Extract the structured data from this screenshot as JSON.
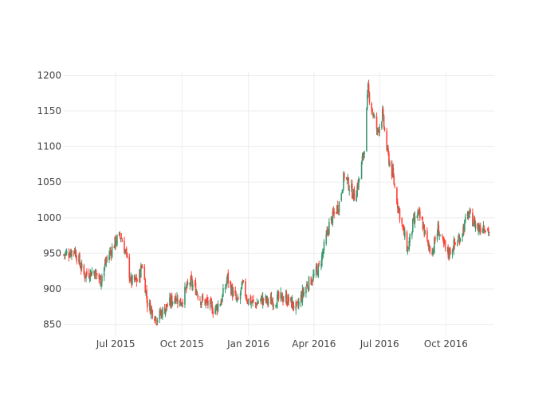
{
  "chart_data": {
    "type": "candlestick",
    "title": "",
    "xlabel": "",
    "ylabel": "",
    "ylim": [
      835,
      1205
    ],
    "xlim": [
      "2015-04-20",
      "2016-12-07"
    ],
    "grid": true,
    "legend": "none",
    "colors": {
      "increasing": "#3d9970",
      "decreasing": "#ff4136",
      "grid": "#eeeeee",
      "tick_text": "#444444"
    },
    "y_ticks": [
      {
        "value": 850,
        "label": "850"
      },
      {
        "value": 900,
        "label": "900"
      },
      {
        "value": 950,
        "label": "950"
      },
      {
        "value": 1000,
        "label": "1000"
      },
      {
        "value": 1050,
        "label": "1050"
      },
      {
        "value": 1100,
        "label": "1100"
      },
      {
        "value": 1150,
        "label": "1150"
      },
      {
        "value": 1200,
        "label": "1200"
      }
    ],
    "x_ticks": [
      {
        "date": "2015-07-01",
        "label": "Jul 2015"
      },
      {
        "date": "2015-10-01",
        "label": "Oct 2015"
      },
      {
        "date": "2016-01-01",
        "label": "Jan 2016"
      },
      {
        "date": "2016-04-01",
        "label": "Apr 2016"
      },
      {
        "date": "2016-07-01",
        "label": "Jul 2016"
      },
      {
        "date": "2016-10-01",
        "label": "Oct 2016"
      }
    ],
    "close_path": [
      [
        "2015-04-20",
        948
      ],
      [
        "2015-05-05",
        955
      ],
      [
        "2015-05-18",
        920
      ],
      [
        "2015-06-01",
        925
      ],
      [
        "2015-06-10",
        912
      ],
      [
        "2015-06-18",
        940
      ],
      [
        "2015-06-30",
        965
      ],
      [
        "2015-07-08",
        975
      ],
      [
        "2015-07-15",
        950
      ],
      [
        "2015-07-22",
        910
      ],
      [
        "2015-08-01",
        912
      ],
      [
        "2015-08-07",
        935
      ],
      [
        "2015-08-14",
        880
      ],
      [
        "2015-08-20",
        870
      ],
      [
        "2015-08-27",
        858
      ],
      [
        "2015-09-05",
        870
      ],
      [
        "2015-09-14",
        880
      ],
      [
        "2015-09-22",
        890
      ],
      [
        "2015-09-29",
        880
      ],
      [
        "2015-10-05",
        895
      ],
      [
        "2015-10-12",
        910
      ],
      [
        "2015-10-20",
        900
      ],
      [
        "2015-10-27",
        885
      ],
      [
        "2015-11-05",
        880
      ],
      [
        "2015-11-15",
        870
      ],
      [
        "2015-11-25",
        885
      ],
      [
        "2015-12-03",
        915
      ],
      [
        "2015-12-10",
        895
      ],
      [
        "2015-12-17",
        880
      ],
      [
        "2015-12-24",
        905
      ],
      [
        "2015-12-31",
        885
      ],
      [
        "2016-01-10",
        878
      ],
      [
        "2016-01-20",
        885
      ],
      [
        "2016-01-30",
        882
      ],
      [
        "2016-02-10",
        885
      ],
      [
        "2016-02-20",
        888
      ],
      [
        "2016-03-01",
        880
      ],
      [
        "2016-03-08",
        872
      ],
      [
        "2016-03-15",
        890
      ],
      [
        "2016-03-22",
        905
      ],
      [
        "2016-04-01",
        918
      ],
      [
        "2016-04-08",
        930
      ],
      [
        "2016-04-15",
        958
      ],
      [
        "2016-04-22",
        990
      ],
      [
        "2016-04-29",
        1005
      ],
      [
        "2016-05-06",
        1020
      ],
      [
        "2016-05-13",
        1060
      ],
      [
        "2016-05-20",
        1045
      ],
      [
        "2016-05-27",
        1030
      ],
      [
        "2016-06-03",
        1055
      ],
      [
        "2016-06-10",
        1100
      ],
      [
        "2016-06-15",
        1180
      ],
      [
        "2016-06-21",
        1150
      ],
      [
        "2016-06-28",
        1120
      ],
      [
        "2016-07-05",
        1145
      ],
      [
        "2016-07-12",
        1090
      ],
      [
        "2016-07-19",
        1060
      ],
      [
        "2016-07-26",
        1020
      ],
      [
        "2016-08-02",
        985
      ],
      [
        "2016-08-09",
        955
      ],
      [
        "2016-08-16",
        990
      ],
      [
        "2016-08-23",
        1005
      ],
      [
        "2016-08-30",
        990
      ],
      [
        "2016-09-06",
        960
      ],
      [
        "2016-09-13",
        955
      ],
      [
        "2016-09-20",
        985
      ],
      [
        "2016-09-27",
        962
      ],
      [
        "2016-10-04",
        950
      ],
      [
        "2016-10-11",
        960
      ],
      [
        "2016-10-18",
        968
      ],
      [
        "2016-10-25",
        985
      ],
      [
        "2016-11-01",
        1005
      ],
      [
        "2016-11-08",
        995
      ],
      [
        "2016-11-15",
        985
      ],
      [
        "2016-11-22",
        990
      ],
      [
        "2016-11-30",
        980
      ]
    ]
  }
}
